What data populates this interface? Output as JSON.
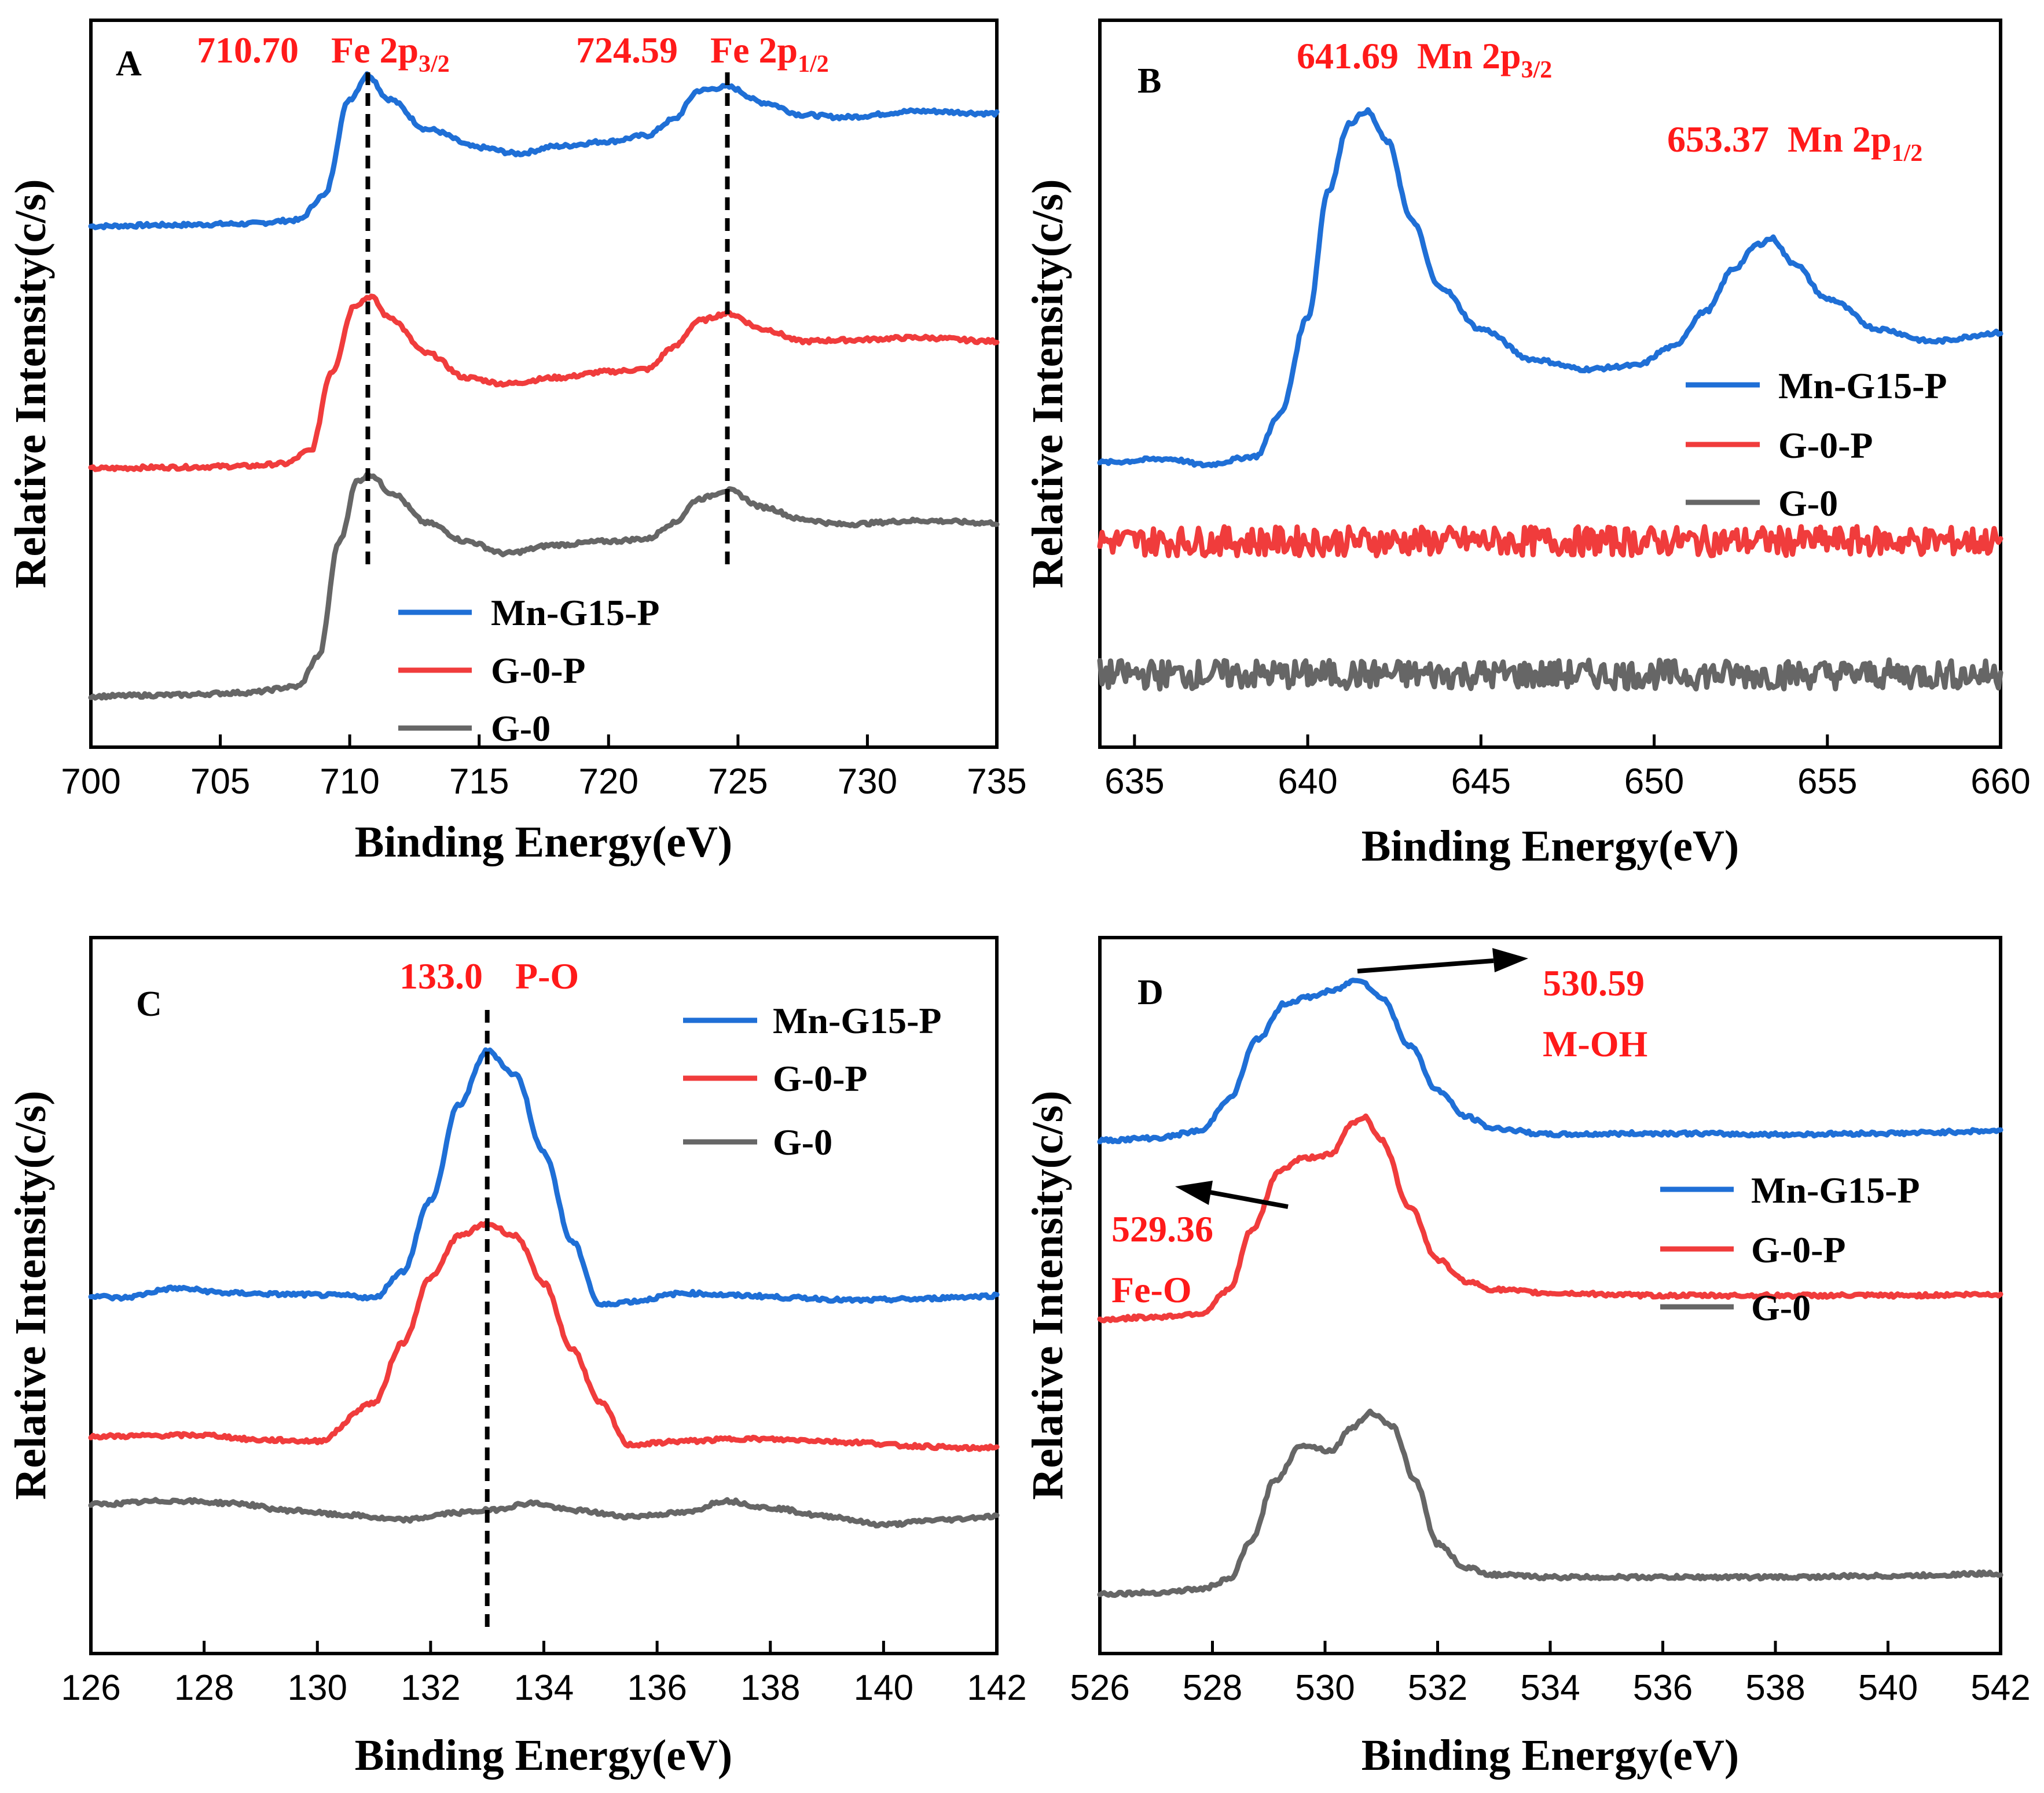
{
  "figure": {
    "colors": {
      "Mn-G15-P": "#1f6fd6",
      "G-0-P": "#f03c3c",
      "G-0": "#666666",
      "annotation": "#ff1a1a"
    }
  },
  "chart_data": [
    {
      "panel": "A",
      "type": "line",
      "title": "",
      "xlabel": "Binding Energy(eV)",
      "ylabel": "Relative Intensity(c/s)",
      "xlim": [
        700,
        735
      ],
      "ylim": [
        0,
        6.0
      ],
      "xticks": [
        700,
        705,
        710,
        715,
        720,
        725,
        730,
        735
      ],
      "tick_labels": [
        "700",
        "705",
        "710",
        "715",
        "720",
        "725",
        "730",
        "735"
      ],
      "legend": [
        "Mn-G15-P",
        "G-0-P",
        "G-0"
      ],
      "legend_position": "bottom-left",
      "annotations": [
        {
          "value": "710.70",
          "label": "Fe 2p",
          "sub": "3/2"
        },
        {
          "value": "724.59",
          "label": "Fe 2p",
          "sub": "1/2"
        }
      ],
      "reference_lines": [
        710.7,
        724.59
      ],
      "series": [
        {
          "name": "Mn-G15-P",
          "x": [
            700,
            703,
            706,
            708,
            709,
            710,
            710.7,
            711.5,
            713,
            715,
            716.5,
            718,
            720,
            721.5,
            722.5,
            723.5,
            724.6,
            726,
            727.5,
            729,
            732,
            735
          ],
          "y": [
            4.3,
            4.31,
            4.32,
            4.35,
            4.55,
            5.35,
            5.55,
            5.35,
            5.1,
            4.95,
            4.9,
            4.96,
            5.0,
            5.05,
            5.18,
            5.42,
            5.45,
            5.32,
            5.22,
            5.2,
            5.25,
            5.23
          ]
        },
        {
          "name": "G-0-P",
          "x": [
            700,
            703,
            706,
            707.5,
            708.5,
            709.3,
            710.2,
            710.8,
            711.5,
            713,
            714.5,
            716,
            718,
            720,
            721.5,
            722.5,
            723.5,
            724.6,
            726,
            727.5,
            729,
            732,
            735
          ],
          "y": [
            2.3,
            2.31,
            2.32,
            2.34,
            2.45,
            3.1,
            3.65,
            3.72,
            3.55,
            3.25,
            3.05,
            3.0,
            3.05,
            3.1,
            3.12,
            3.3,
            3.52,
            3.58,
            3.45,
            3.35,
            3.36,
            3.38,
            3.35
          ]
        },
        {
          "name": "G-0",
          "x": [
            700,
            703,
            706,
            708,
            708.8,
            709.6,
            710.3,
            710.8,
            711.6,
            713,
            714.5,
            716,
            718,
            720,
            721.5,
            722.5,
            723.5,
            724.6,
            726,
            727.5,
            729,
            732,
            735
          ],
          "y": [
            0.42,
            0.43,
            0.45,
            0.5,
            0.75,
            1.7,
            2.2,
            2.25,
            2.1,
            1.85,
            1.7,
            1.6,
            1.67,
            1.7,
            1.72,
            1.85,
            2.05,
            2.12,
            1.98,
            1.88,
            1.84,
            1.87,
            1.85
          ]
        }
      ]
    },
    {
      "panel": "B",
      "type": "line",
      "title": "",
      "xlabel": "Binding Energy(eV)",
      "ylabel": "Relative Intensity(c/s)",
      "xlim": [
        634,
        660
      ],
      "ylim": [
        0,
        6.0
      ],
      "xticks": [
        635,
        640,
        645,
        650,
        655,
        660
      ],
      "tick_labels": [
        "635",
        "640",
        "645",
        "650",
        "655",
        "660"
      ],
      "legend": [
        "Mn-G15-P",
        "G-0-P",
        "G-0"
      ],
      "legend_position": "right",
      "annotations": [
        {
          "value": "641.69",
          "label": "Mn 2p",
          "sub": "3/2"
        },
        {
          "value": "653.37",
          "label": "Mn 2p",
          "sub": "1/2"
        }
      ],
      "series": [
        {
          "name": "Mn-G15-P",
          "x": [
            634,
            636,
            637,
            638.5,
            639.2,
            640,
            640.6,
            641.2,
            641.7,
            642.3,
            643,
            643.8,
            645,
            646.5,
            648,
            649.5,
            650.5,
            651.5,
            652.3,
            653,
            653.4,
            654,
            655,
            656.5,
            658,
            660
          ],
          "y": [
            2.35,
            2.38,
            2.33,
            2.4,
            2.75,
            3.55,
            4.6,
            5.15,
            5.25,
            5.0,
            4.35,
            3.8,
            3.45,
            3.2,
            3.12,
            3.15,
            3.3,
            3.6,
            3.95,
            4.15,
            4.2,
            4.0,
            3.7,
            3.45,
            3.35,
            3.42
          ]
        },
        {
          "name": "G-0-P",
          "x": [
            634,
            660
          ],
          "y": [
            1.7,
            1.7
          ],
          "noise": 0.12
        },
        {
          "name": "G-0",
          "x": [
            634,
            660
          ],
          "y": [
            0.6,
            0.6
          ],
          "noise": 0.12
        }
      ]
    },
    {
      "panel": "C",
      "type": "line",
      "title": "",
      "xlabel": "Binding Energy(eV)",
      "ylabel": "Relative Intensity(c/s)",
      "xlim": [
        126,
        142
      ],
      "ylim": [
        0,
        6.0
      ],
      "xticks": [
        126,
        128,
        130,
        132,
        134,
        136,
        138,
        140,
        142
      ],
      "tick_labels": [
        "126",
        "128",
        "130",
        "132",
        "134",
        "136",
        "138",
        "140",
        "142"
      ],
      "legend": [
        "Mn-G15-P",
        "G-0-P",
        "G-0"
      ],
      "legend_position": "top-right",
      "annotations": [
        {
          "value": "133.0",
          "label": "P-O",
          "sub": ""
        }
      ],
      "reference_lines": [
        133.0
      ],
      "series": [
        {
          "name": "Mn-G15-P",
          "x": [
            126,
            126.5,
            127.5,
            128.5,
            129.5,
            130.5,
            131,
            131.5,
            132,
            132.5,
            133,
            133.5,
            134,
            134.5,
            135,
            135.5,
            136.5,
            137.5,
            138.5,
            139.5,
            140.5,
            141.5,
            142
          ],
          "y": [
            3.0,
            2.98,
            3.06,
            3.02,
            3.01,
            3.0,
            2.98,
            3.2,
            3.8,
            4.6,
            5.05,
            4.85,
            4.2,
            3.45,
            2.92,
            2.95,
            3.02,
            3.0,
            2.98,
            2.96,
            2.97,
            2.99,
            3.0
          ]
        },
        {
          "name": "G-0-P",
          "x": [
            126,
            128,
            129,
            130,
            131,
            131.5,
            132,
            132.5,
            133,
            133.5,
            134,
            134.5,
            135,
            135.5,
            136.5,
            137.5,
            138.5,
            139.5,
            140.5,
            141.5,
            142
          ],
          "y": [
            1.82,
            1.83,
            1.79,
            1.78,
            2.1,
            2.6,
            3.15,
            3.5,
            3.6,
            3.5,
            3.1,
            2.55,
            2.1,
            1.75,
            1.78,
            1.8,
            1.79,
            1.77,
            1.74,
            1.72,
            1.73
          ]
        },
        {
          "name": "G-0",
          "x": [
            126,
            127.5,
            128.5,
            129.5,
            130.5,
            131.5,
            132.5,
            133,
            133.8,
            134.5,
            135.5,
            136.5,
            137.2,
            138,
            139,
            140,
            141,
            142
          ],
          "y": [
            1.25,
            1.28,
            1.26,
            1.2,
            1.16,
            1.12,
            1.18,
            1.2,
            1.26,
            1.2,
            1.15,
            1.18,
            1.28,
            1.22,
            1.15,
            1.08,
            1.12,
            1.15
          ]
        }
      ]
    },
    {
      "panel": "D",
      "type": "line",
      "title": "",
      "xlabel": "Binding Energy(eV)",
      "ylabel": "Relative Intensity(c/s)",
      "xlim": [
        526,
        542
      ],
      "ylim": [
        0,
        6.0
      ],
      "xticks": [
        526,
        528,
        530,
        532,
        534,
        536,
        538,
        540,
        542
      ],
      "tick_labels": [
        "526",
        "528",
        "530",
        "532",
        "534",
        "536",
        "538",
        "540",
        "542"
      ],
      "legend": [
        "Mn-G15-P",
        "G-0-P",
        "G-0"
      ],
      "legend_position": "right",
      "annotations": [
        {
          "value": "530.59",
          "label": "M-OH",
          "sub": ""
        },
        {
          "value": "529.36",
          "label": "Fe-O",
          "sub": ""
        }
      ],
      "series": [
        {
          "name": "Mn-G15-P",
          "x": [
            526,
            527,
            527.8,
            528.3,
            528.8,
            529.3,
            529.7,
            530.1,
            530.6,
            531,
            531.5,
            532,
            532.5,
            533,
            534,
            536,
            538,
            540,
            542
          ],
          "y": [
            4.3,
            4.32,
            4.38,
            4.65,
            5.15,
            5.45,
            5.5,
            5.55,
            5.65,
            5.5,
            5.1,
            4.72,
            4.5,
            4.4,
            4.35,
            4.36,
            4.35,
            4.36,
            4.38
          ]
        },
        {
          "name": "G-0-P",
          "x": [
            526,
            527,
            527.8,
            528.3,
            528.7,
            529.2,
            529.6,
            530.1,
            530.5,
            530.7,
            531,
            531.5,
            532,
            532.5,
            533,
            534,
            536,
            538,
            540,
            542
          ],
          "y": [
            2.8,
            2.82,
            2.85,
            3.05,
            3.55,
            4.05,
            4.15,
            4.18,
            4.45,
            4.5,
            4.3,
            3.75,
            3.3,
            3.12,
            3.05,
            3.02,
            3.0,
            3.0,
            3.0,
            3.01
          ]
        },
        {
          "name": "G-0",
          "x": [
            526,
            527,
            527.8,
            528.3,
            528.7,
            529.1,
            529.6,
            530.1,
            530.5,
            530.8,
            531.2,
            531.6,
            532,
            532.5,
            533,
            534,
            536,
            538,
            540,
            542
          ],
          "y": [
            0.5,
            0.51,
            0.54,
            0.62,
            0.95,
            1.45,
            1.75,
            1.7,
            1.9,
            2.02,
            1.9,
            1.45,
            0.92,
            0.72,
            0.66,
            0.64,
            0.64,
            0.64,
            0.65,
            0.67
          ]
        }
      ]
    }
  ]
}
